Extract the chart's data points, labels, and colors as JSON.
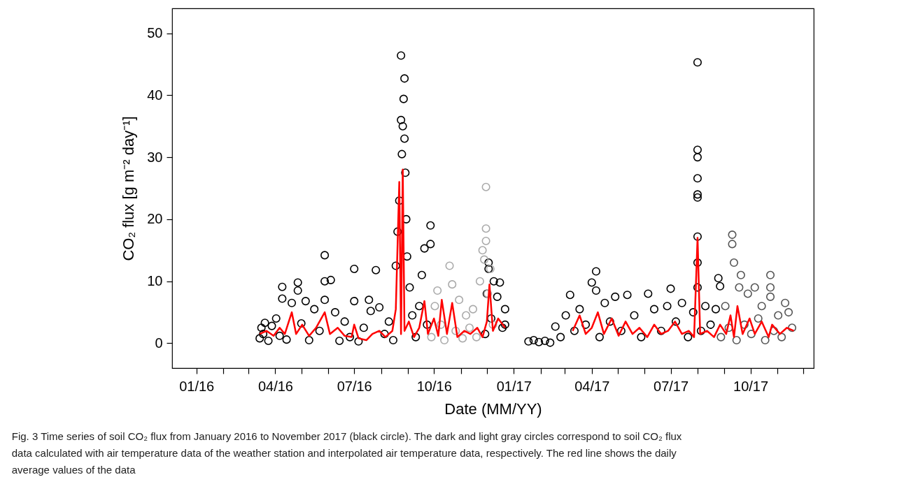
{
  "chart_data": {
    "type": "scatter",
    "xlabel": "Date (MM/YY)",
    "ylabel": "CO₂ flux [g m⁻² day⁻¹]",
    "xlim": [
      "2015-12-04",
      "2017-12-13"
    ],
    "ylim": [
      -4,
      54
    ],
    "xticks": [
      {
        "value": "2016-01",
        "label": "01/16"
      },
      {
        "value": "2016-02",
        "label": null
      },
      {
        "value": "2016-03",
        "label": null
      },
      {
        "value": "2016-04",
        "label": "04/16"
      },
      {
        "value": "2016-05",
        "label": null
      },
      {
        "value": "2016-06",
        "label": null
      },
      {
        "value": "2016-07",
        "label": "07/16"
      },
      {
        "value": "2016-08",
        "label": null
      },
      {
        "value": "2016-09",
        "label": null
      },
      {
        "value": "2016-10",
        "label": "10/16"
      },
      {
        "value": "2016-11",
        "label": null
      },
      {
        "value": "2016-12",
        "label": null
      },
      {
        "value": "2017-01",
        "label": "01/17"
      },
      {
        "value": "2017-02",
        "label": null
      },
      {
        "value": "2017-03",
        "label": null
      },
      {
        "value": "2017-04",
        "label": "04/17"
      },
      {
        "value": "2017-05",
        "label": null
      },
      {
        "value": "2017-06",
        "label": null
      },
      {
        "value": "2017-07",
        "label": "07/17"
      },
      {
        "value": "2017-08",
        "label": null
      },
      {
        "value": "2017-09",
        "label": null
      },
      {
        "value": "2017-10",
        "label": "10/17"
      },
      {
        "value": "2017-11",
        "label": null
      },
      {
        "value": "2017-12",
        "label": null
      }
    ],
    "yticks": [
      0,
      10,
      20,
      30,
      40,
      50
    ],
    "grid": false,
    "marker": "circle",
    "annotations": [
      "Fig. 3  Time series of soil CO₂ flux from January 2016 to November 2017 (black circle). The dark and light gray circles correspond to soil CO₂ flux data calculated with air temperature data of the weather station and interpolated air temperature data, respectively. The red line shows the daily average values of the data"
    ],
    "series": [
      {
        "color": "#000000",
        "x": [
          "2016-03-14",
          "2016-03-16",
          "2016-03-18",
          "2016-03-20",
          "2016-03-24",
          "2016-03-28",
          "2016-04-02",
          "2016-04-06",
          "2016-04-09",
          "2016-04-09",
          "2016-04-14",
          "2016-04-20",
          "2016-04-27",
          "2016-04-27",
          "2016-05-01",
          "2016-05-06",
          "2016-05-10",
          "2016-05-16",
          "2016-05-22",
          "2016-05-28",
          "2016-05-28",
          "2016-05-28",
          "2016-06-04",
          "2016-06-09",
          "2016-06-14",
          "2016-06-20",
          "2016-06-26",
          "2016-07-01",
          "2016-07-01",
          "2016-07-06",
          "2016-07-12",
          "2016-07-18",
          "2016-07-20",
          "2016-07-26",
          "2016-07-30",
          "2016-08-05",
          "2016-08-10",
          "2016-08-15",
          "2016-08-18",
          "2016-08-20",
          "2016-08-22",
          "2016-08-24",
          "2016-08-24",
          "2016-08-25",
          "2016-08-26",
          "2016-08-27",
          "2016-08-28",
          "2016-08-28",
          "2016-08-29",
          "2016-08-30",
          "2016-08-31",
          "2016-09-03",
          "2016-09-06",
          "2016-09-10",
          "2016-09-14",
          "2016-09-17",
          "2016-09-20",
          "2016-09-23",
          "2016-09-27",
          "2016-09-27",
          "2016-11-29",
          "2016-12-01",
          "2016-12-03",
          "2016-12-03",
          "2016-12-06",
          "2016-12-09",
          "2016-12-13",
          "2016-12-16",
          "2016-12-19",
          "2016-12-22",
          "2016-12-22",
          "2017-01-18",
          "2017-01-24",
          "2017-01-30",
          "2017-02-06",
          "2017-02-12",
          "2017-02-18",
          "2017-02-24",
          "2017-03-02",
          "2017-03-07",
          "2017-03-12",
          "2017-03-18",
          "2017-03-25",
          "2017-04-01",
          "2017-04-06",
          "2017-04-06",
          "2017-04-10",
          "2017-04-16",
          "2017-04-22",
          "2017-04-28",
          "2017-05-05",
          "2017-05-12",
          "2017-05-20",
          "2017-05-28",
          "2017-06-05",
          "2017-06-12",
          "2017-06-20",
          "2017-06-27",
          "2017-07-01",
          "2017-07-07",
          "2017-07-14",
          "2017-07-21",
          "2017-07-27",
          "2017-08-01",
          "2017-08-01",
          "2017-08-01",
          "2017-08-01",
          "2017-08-01",
          "2017-08-01",
          "2017-08-01",
          "2017-08-01",
          "2017-08-01",
          "2017-08-05",
          "2017-08-10",
          "2017-08-16",
          "2017-08-22",
          "2017-08-25",
          "2017-08-27"
        ],
        "values": [
          0.8,
          2.5,
          1.5,
          3.3,
          0.4,
          2.8,
          4.0,
          1.2,
          9.1,
          7.2,
          0.6,
          6.5,
          9.8,
          8.5,
          3.2,
          6.8,
          0.5,
          5.5,
          2.0,
          14.2,
          10.0,
          7.0,
          10.2,
          5.0,
          0.4,
          3.5,
          1.0,
          12.0,
          6.8,
          0.3,
          2.5,
          7.0,
          5.2,
          11.8,
          5.8,
          1.5,
          3.5,
          0.5,
          12.5,
          18.0,
          23.0,
          46.4,
          36.0,
          30.5,
          35.0,
          39.4,
          42.7,
          33.0,
          27.5,
          20.0,
          14.0,
          9.0,
          4.5,
          1.0,
          6.0,
          11.0,
          15.3,
          3.0,
          19.0,
          16.0,
          1.5,
          8.0,
          13.0,
          12.0,
          4.0,
          10.0,
          7.5,
          9.8,
          2.5,
          5.5,
          3.0,
          0.3,
          0.5,
          0.2,
          0.4,
          0.1,
          2.7,
          1.0,
          4.5,
          7.8,
          2.0,
          5.5,
          3.0,
          9.8,
          11.6,
          8.5,
          1.0,
          6.5,
          3.5,
          7.5,
          2.0,
          7.8,
          4.5,
          1.0,
          8.0,
          5.5,
          2.0,
          6.0,
          8.8,
          3.5,
          6.5,
          1.0,
          5.0,
          45.3,
          31.2,
          30.0,
          26.6,
          24.0,
          23.5,
          17.2,
          13.0,
          9.0,
          2.0,
          6.0,
          3.0,
          5.5,
          10.5,
          9.2
        ]
      },
      {
        "color": "#555555",
        "x": [
          "2017-08-28",
          "2017-09-02",
          "2017-09-06",
          "2017-09-10",
          "2017-09-10",
          "2017-09-12",
          "2017-09-15",
          "2017-09-18",
          "2017-09-20",
          "2017-09-24",
          "2017-09-28",
          "2017-10-02",
          "2017-10-06",
          "2017-10-10",
          "2017-10-14",
          "2017-10-18",
          "2017-10-24",
          "2017-10-24",
          "2017-10-24",
          "2017-10-28",
          "2017-11-02",
          "2017-11-06",
          "2017-11-10",
          "2017-11-14",
          "2017-11-18"
        ],
        "values": [
          1.0,
          6.0,
          2.5,
          17.5,
          16.0,
          13.0,
          0.5,
          9.0,
          11.0,
          3.0,
          8.0,
          1.5,
          9.0,
          4.0,
          6.0,
          0.5,
          11.0,
          9.0,
          7.5,
          2.0,
          4.5,
          1.0,
          6.5,
          5.0,
          2.5
        ]
      },
      {
        "color": "#aaaaaa",
        "x": [
          "2016-09-28",
          "2016-10-02",
          "2016-10-05",
          "2016-10-09",
          "2016-10-13",
          "2016-10-19",
          "2016-10-22",
          "2016-10-26",
          "2016-10-30",
          "2016-11-03",
          "2016-11-07",
          "2016-11-11",
          "2016-11-15",
          "2016-11-19",
          "2016-11-23",
          "2016-11-26",
          "2016-11-28",
          "2016-11-30",
          "2016-11-30",
          "2016-11-30",
          "2016-12-02",
          "2016-12-05",
          "2016-12-08"
        ],
        "values": [
          1.0,
          6.0,
          8.5,
          3.0,
          0.5,
          12.5,
          9.5,
          2.0,
          7.0,
          0.8,
          4.5,
          2.5,
          5.5,
          1.0,
          10.0,
          15.0,
          13.5,
          25.2,
          18.5,
          16.5,
          8.0,
          12.0,
          3.0
        ]
      },
      {
        "type": "line",
        "color": "#ff0000",
        "marker": "none",
        "x": [
          "2016-03-14",
          "2016-03-22",
          "2016-03-30",
          "2016-04-06",
          "2016-04-12",
          "2016-04-20",
          "2016-04-25",
          "2016-05-02",
          "2016-05-10",
          "2016-05-18",
          "2016-05-28",
          "2016-06-03",
          "2016-06-12",
          "2016-06-20",
          "2016-06-28",
          "2016-07-01",
          "2016-07-06",
          "2016-07-15",
          "2016-07-22",
          "2016-07-30",
          "2016-08-06",
          "2016-08-14",
          "2016-08-18",
          "2016-08-22",
          "2016-08-24",
          "2016-08-26",
          "2016-08-28",
          "2016-09-02",
          "2016-09-08",
          "2016-09-14",
          "2016-09-20",
          "2016-09-24",
          "2016-10-01",
          "2016-10-06",
          "2016-10-10",
          "2016-10-16",
          "2016-10-22",
          "2016-10-28",
          "2016-11-05",
          "2016-11-12",
          "2016-11-20",
          "2016-11-26",
          "2016-12-01",
          "2016-12-04",
          "2016-12-08",
          "2016-12-14",
          "2016-12-22",
          "2017-01-01",
          "2017-03-10",
          "2017-03-18",
          "2017-03-25",
          "2017-04-01",
          "2017-04-08",
          "2017-04-15",
          "2017-04-24",
          "2017-05-02",
          "2017-05-10",
          "2017-05-18",
          "2017-05-26",
          "2017-06-04",
          "2017-06-12",
          "2017-06-20",
          "2017-06-28",
          "2017-07-06",
          "2017-07-14",
          "2017-07-22",
          "2017-07-28",
          "2017-08-01",
          "2017-08-04",
          "2017-08-12",
          "2017-08-20",
          "2017-08-27",
          "2017-09-03",
          "2017-09-08",
          "2017-09-12",
          "2017-09-16",
          "2017-09-22",
          "2017-09-30",
          "2017-10-06",
          "2017-10-14",
          "2017-10-22",
          "2017-10-26",
          "2017-11-04",
          "2017-11-12",
          "2017-11-20"
        ],
        "values": [
          1.5,
          2.0,
          1.2,
          2.5,
          1.5,
          5.0,
          1.5,
          3.0,
          1.2,
          2.5,
          5.0,
          1.5,
          2.5,
          1.2,
          1.0,
          3.0,
          0.8,
          0.5,
          1.5,
          2.0,
          1.0,
          2.0,
          5.5,
          26.0,
          1.5,
          28.0,
          2.0,
          3.5,
          1.0,
          2.5,
          6.8,
          1.5,
          4.0,
          1.2,
          7.0,
          1.5,
          6.5,
          1.0,
          2.0,
          1.5,
          2.5,
          1.0,
          3.5,
          9.5,
          2.0,
          4.0,
          2.5,
          null,
          2.0,
          4.5,
          1.5,
          2.5,
          5.0,
          1.5,
          4.0,
          1.2,
          3.5,
          1.5,
          2.5,
          1.0,
          3.0,
          1.5,
          2.0,
          3.5,
          1.5,
          2.0,
          1.0,
          17.0,
          1.5,
          2.0,
          1.0,
          3.0,
          1.5,
          4.5,
          1.0,
          6.0,
          1.5,
          4.0,
          1.5,
          3.5,
          1.0,
          3.0,
          1.5,
          2.5,
          2.0
        ]
      }
    ]
  }
}
